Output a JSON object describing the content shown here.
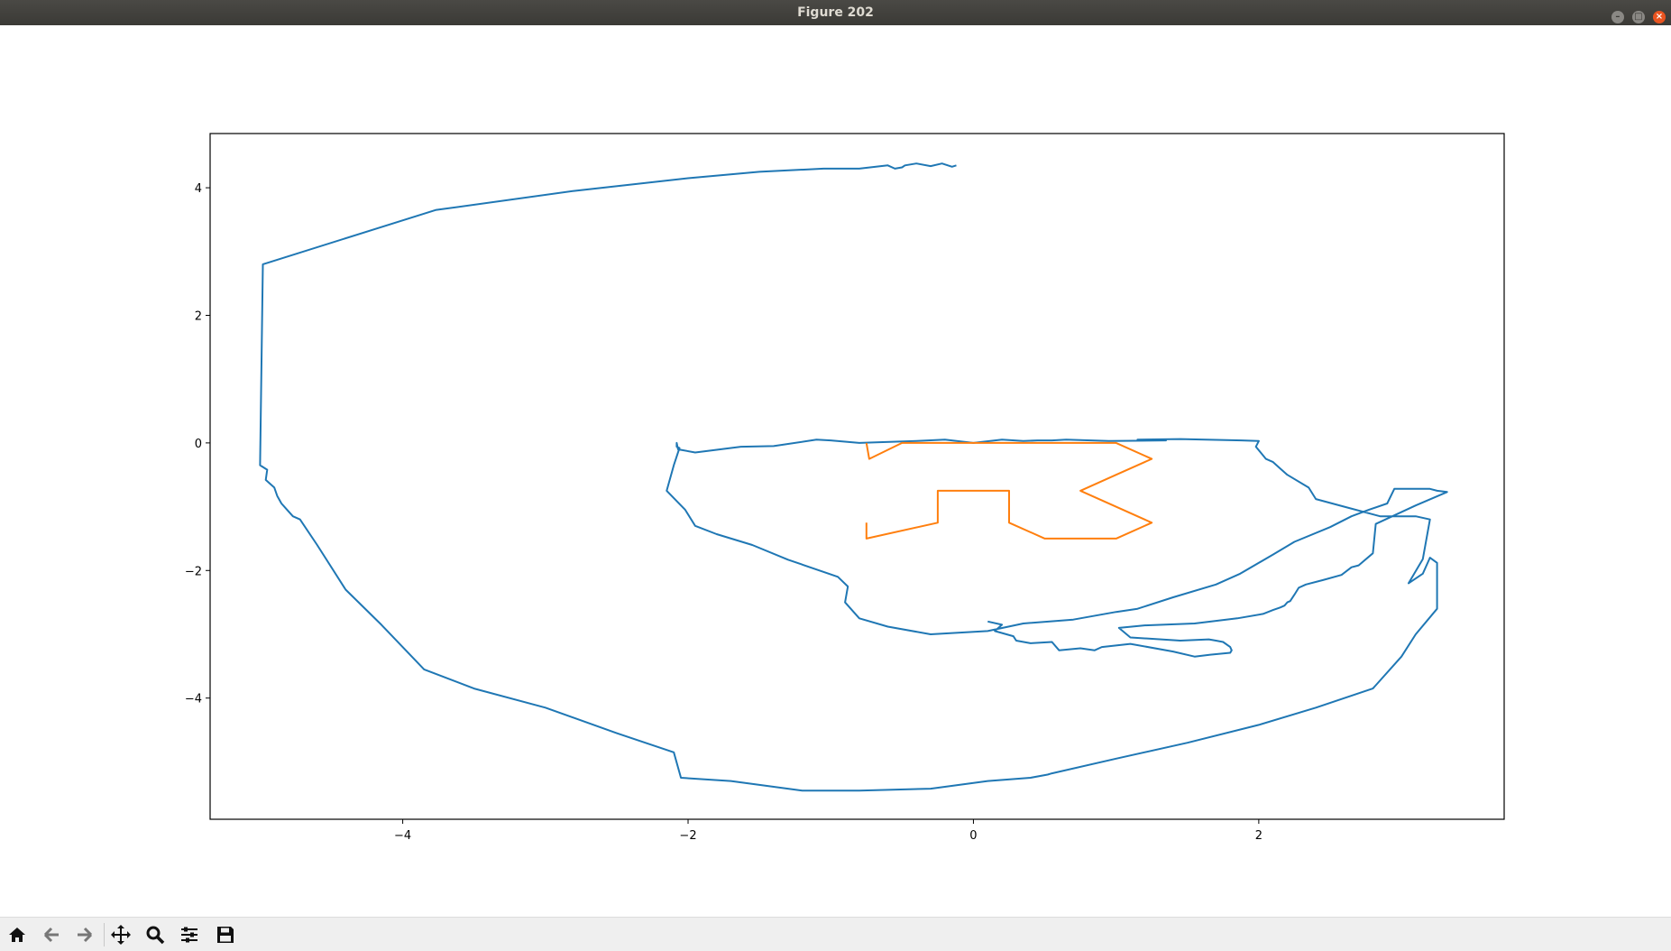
{
  "window": {
    "title": "Figure 202",
    "buttons": {
      "minimize": "–",
      "maximize": "□",
      "close": "×"
    }
  },
  "toolbar": {
    "icons": [
      "home-icon",
      "back-arrow-icon",
      "forward-arrow-icon",
      "pan-move-icon",
      "zoom-magnifier-icon",
      "configure-subplots-icon",
      "save-floppy-icon"
    ]
  },
  "colors": {
    "series1": "#1f77b4",
    "series2": "#ff7f0e"
  },
  "chart_data": {
    "type": "line",
    "title": "",
    "xlabel": "",
    "ylabel": "",
    "xlim": [
      -5.35,
      3.72
    ],
    "ylim": [
      -5.9,
      4.85
    ],
    "xticks": [
      -4,
      -2,
      0,
      2
    ],
    "yticks": [
      4,
      2,
      0,
      -2,
      -4
    ],
    "xtick_labels": [
      "−4",
      "−2",
      "0",
      "2"
    ],
    "ytick_labels": [
      "4",
      "2",
      "0",
      "−2",
      "−4"
    ],
    "grid": false,
    "series": [
      {
        "color": "#1f77b4",
        "x": [
          -0.12,
          -0.15,
          -0.22,
          -0.3,
          -0.4,
          -0.48,
          -0.5,
          -0.55,
          -0.6,
          -0.8,
          -1.05,
          -1.5,
          -2.0,
          -2.8,
          -3.77,
          -4.98,
          -5.0,
          -4.95,
          -4.96,
          -4.9,
          -4.88,
          -4.85,
          -4.81,
          -4.77,
          -4.72,
          -4.6,
          -4.4,
          -4.15,
          -3.85,
          -3.5,
          -3.0,
          -2.5,
          -2.1,
          -2.05,
          -1.7,
          -1.2,
          -0.8,
          -0.3,
          0.1,
          0.4,
          0.52,
          0.55,
          1.0,
          1.5,
          2.0,
          2.4,
          2.8,
          3.0,
          3.1,
          3.25,
          3.25,
          3.2,
          3.15,
          3.05,
          3.15,
          3.2,
          3.1,
          2.85,
          2.6,
          2.4,
          2.35,
          2.2,
          2.15,
          2.1,
          2.05,
          1.98,
          2.0,
          1.88,
          1.45,
          1.15,
          1.35,
          0.95,
          0.65,
          0.55,
          0.45,
          0.35,
          0.2,
          0.0,
          -0.2,
          -0.4,
          -0.8,
          -1.0,
          -1.1,
          -1.4,
          -1.63,
          -1.95,
          -2.07,
          -2.08,
          -2.08,
          -2.06,
          -2.1,
          -2.15,
          -2.02,
          -1.95,
          -1.8,
          -1.55,
          -1.3,
          -0.95,
          -0.88,
          -0.9,
          -0.8,
          -0.6,
          -0.3,
          0.1,
          0.35,
          0.7,
          1.0,
          1.15,
          1.4,
          1.7,
          1.87,
          2.1,
          2.25,
          2.5,
          2.65,
          2.77,
          2.9,
          2.95,
          3.2,
          3.25,
          3.32,
          3.1,
          2.82,
          2.8,
          2.7,
          2.65,
          2.58,
          2.45,
          2.33,
          2.28,
          2.25,
          2.22,
          2.2,
          2.18,
          2.15,
          2.1,
          2.03,
          1.85,
          1.55,
          1.2,
          1.02,
          1.1,
          1.45,
          1.65,
          1.7,
          1.75,
          1.8,
          1.8,
          1.81,
          1.8,
          1.75,
          1.66,
          1.55,
          1.4,
          1.1,
          0.9,
          0.85,
          0.75,
          0.6,
          0.55,
          0.4,
          0.3,
          0.28,
          0.15,
          0.2,
          0.1
        ],
        "y": [
          4.35,
          4.33,
          4.38,
          4.34,
          4.38,
          4.35,
          4.32,
          4.3,
          4.35,
          4.3,
          4.3,
          4.25,
          4.15,
          3.95,
          3.65,
          2.8,
          -0.35,
          -0.42,
          -0.58,
          -0.7,
          -0.83,
          -0.95,
          -1.05,
          -1.15,
          -1.2,
          -1.6,
          -2.3,
          -2.85,
          -3.55,
          -3.85,
          -4.15,
          -4.55,
          -4.85,
          -5.25,
          -5.3,
          -5.45,
          -5.45,
          -5.42,
          -5.3,
          -5.25,
          -5.2,
          -5.18,
          -4.95,
          -4.7,
          -4.42,
          -4.15,
          -3.85,
          -3.35,
          -3.0,
          -2.6,
          -1.88,
          -1.8,
          -2.05,
          -2.2,
          -1.82,
          -1.2,
          -1.15,
          -1.15,
          -1.0,
          -0.88,
          -0.7,
          -0.5,
          -0.4,
          -0.3,
          -0.25,
          -0.06,
          0.03,
          0.04,
          0.06,
          0.05,
          0.04,
          0.03,
          0.05,
          0.04,
          0.04,
          0.03,
          0.05,
          0.0,
          0.05,
          0.03,
          0.0,
          0.04,
          0.05,
          -0.05,
          -0.06,
          -0.15,
          -0.1,
          0.0,
          -0.06,
          -0.08,
          -0.35,
          -0.75,
          -1.05,
          -1.3,
          -1.43,
          -1.6,
          -1.83,
          -2.1,
          -2.25,
          -2.5,
          -2.75,
          -2.88,
          -3.0,
          -2.95,
          -2.83,
          -2.77,
          -2.65,
          -2.6,
          -2.42,
          -2.22,
          -2.05,
          -1.75,
          -1.55,
          -1.32,
          -1.15,
          -1.05,
          -0.95,
          -0.72,
          -0.72,
          -0.75,
          -0.77,
          -0.98,
          -1.27,
          -1.73,
          -1.92,
          -1.95,
          -2.07,
          -2.15,
          -2.22,
          -2.27,
          -2.38,
          -2.48,
          -2.5,
          -2.55,
          -2.58,
          -2.62,
          -2.68,
          -2.75,
          -2.83,
          -2.86,
          -2.9,
          -3.05,
          -3.1,
          -3.08,
          -3.1,
          -3.12,
          -3.2,
          -3.2,
          -3.25,
          -3.29,
          -3.3,
          -3.32,
          -3.35,
          -3.27,
          -3.15,
          -3.2,
          -3.25,
          -3.22,
          -3.25,
          -3.12,
          -3.14,
          -3.1,
          -3.03,
          -2.95,
          -2.85,
          -2.8
        ]
      },
      {
        "color": "#ff7f0e",
        "x": [
          -0.75,
          -0.73,
          -0.5,
          0.0,
          1.0,
          1.25,
          1.0,
          0.75,
          1.25,
          1.0,
          0.5,
          0.25,
          0.25,
          -0.25,
          -0.25,
          -0.75,
          -0.75
        ],
        "y": [
          0.0,
          -0.25,
          0.0,
          0.0,
          0.0,
          -0.25,
          -0.5,
          -0.75,
          -1.25,
          -1.5,
          -1.5,
          -1.25,
          -0.75,
          -0.75,
          -1.25,
          -1.5,
          -1.25
        ]
      }
    ]
  }
}
